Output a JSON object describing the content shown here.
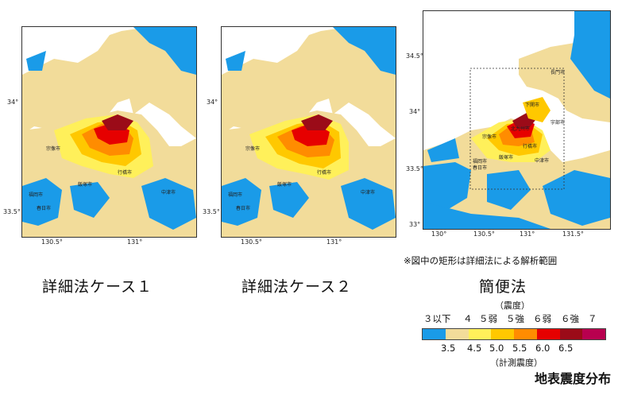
{
  "maps": {
    "m1": {
      "caption": "詳細法ケース１",
      "lat_ticks": [
        "34°",
        "33.5°"
      ],
      "lon_ticks": [
        "130.5°",
        "131°"
      ],
      "cities": [
        "宗像市",
        "福岡市",
        "春日市",
        "飯塚市",
        "中津市",
        "行橋市"
      ]
    },
    "m2": {
      "caption": "詳細法ケース２",
      "lat_ticks": [
        "34°",
        "33.5°"
      ],
      "lon_ticks": [
        "130.5°",
        "131°"
      ],
      "cities": [
        "宗像市",
        "福岡市",
        "春日市",
        "飯塚市",
        "中津市",
        "行橋市"
      ]
    },
    "m3": {
      "caption": "簡便法",
      "lat_ticks": [
        "34.5°",
        "34°",
        "33.5°",
        "33°"
      ],
      "lon_ticks": [
        "130°",
        "130.5°",
        "131°",
        "131.5°"
      ],
      "cities": [
        "長門市",
        "下関市",
        "宇部市",
        "宗像市",
        "北九州市",
        "福岡市",
        "飯塚市",
        "春日市",
        "行橋市",
        "中津市"
      ]
    }
  },
  "note": "※図中の矩形は詳細法による解析範囲",
  "legend": {
    "title_top": "（震度）",
    "intensity_labels": [
      "３以下",
      "４",
      "５弱",
      "５強",
      "６弱",
      "６強",
      "７"
    ],
    "colors": [
      "#1a9be8",
      "#f2dc9a",
      "#fff05a",
      "#ffc800",
      "#ff8c00",
      "#e60000",
      "#9b0b18",
      "#b8004f"
    ],
    "values": [
      "3.5",
      "4.5",
      "5.0",
      "5.5",
      "6.0",
      "6.5"
    ],
    "title_bottom": "（計測震度）"
  },
  "footer": "地表震度分布"
}
